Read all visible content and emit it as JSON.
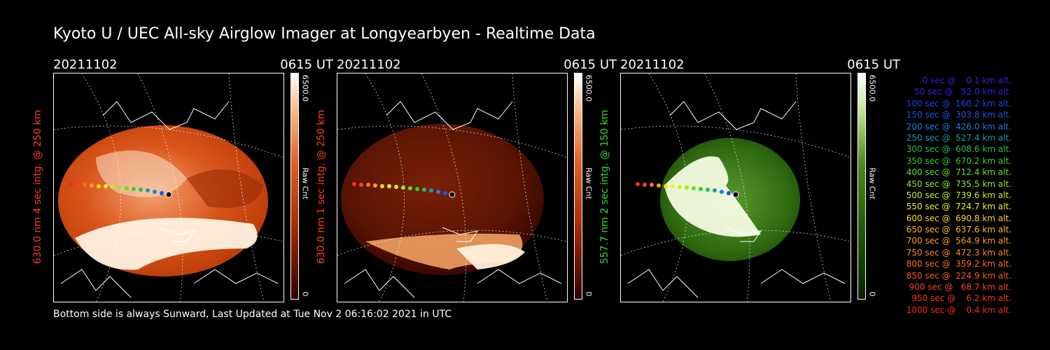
{
  "title": "Kyoto U / UEC All-sky Airglow Imager at Longyearbyen - Realtime Data",
  "colors": {
    "red_label": "#ff3b2b",
    "green_label": "#33dd33",
    "red_bar_top": "#ffffff",
    "red_bar_mid": "#d94a10",
    "green_bar_mid": "#3a8a10"
  },
  "panels": [
    {
      "date": "20211102",
      "time": "0615 UT",
      "side_label": "630.0 nm 4 sec intg. @ 250 km",
      "side_color": "#ff3b2b",
      "cbar_max": "6500.0",
      "cbar_unit": "Raw Cnt",
      "cbar_min": "0",
      "palette": "red-bright"
    },
    {
      "date": "20211102",
      "time": "0615 UT",
      "side_label": "630.0 nm 1 sec intg. @ 250 km",
      "side_color": "#ff3b2b",
      "cbar_max": "6500.0",
      "cbar_unit": "Raw Cnt",
      "cbar_min": "0",
      "palette": "red-dark"
    },
    {
      "date": "20211102",
      "time": "0615 UT",
      "side_label": "557.7 nm 2 sec intg. @ 150 km",
      "side_color": "#33dd33",
      "cbar_max": "6500.0",
      "cbar_unit": "Raw Cnt",
      "cbar_min": "0",
      "palette": "green"
    }
  ],
  "legend": [
    {
      "text": "   0 sec @    0.1 km alt.",
      "color": "#3a1fd8"
    },
    {
      "text": "  50 sec @   52.0 km alt.",
      "color": "#3320dd"
    },
    {
      "text": " 100 sec @  160.2 km alt.",
      "color": "#2440e0"
    },
    {
      "text": " 150 sec @  303.8 km alt.",
      "color": "#1c55e4"
    },
    {
      "text": " 200 sec @  426.0 km alt.",
      "color": "#1780e0"
    },
    {
      "text": " 250 sec @  527.4 km alt.",
      "color": "#1c9aa8"
    },
    {
      "text": " 300 sec @  608.6 km alt.",
      "color": "#22c060"
    },
    {
      "text": " 350 sec @  670.2 km alt.",
      "color": "#33d030"
    },
    {
      "text": " 400 sec @  712.4 km alt.",
      "color": "#66e020"
    },
    {
      "text": " 450 sec @  735.5 km alt.",
      "color": "#99e820"
    },
    {
      "text": " 500 sec @  739.6 km alt.",
      "color": "#ccf020"
    },
    {
      "text": " 550 sec @  724.7 km alt.",
      "color": "#eef020"
    },
    {
      "text": " 600 sec @  690.8 km alt.",
      "color": "#f8d820"
    },
    {
      "text": " 650 sec @  637.6 km alt.",
      "color": "#f8bd20"
    },
    {
      "text": " 700 sec @  564.9 km alt.",
      "color": "#f8a020"
    },
    {
      "text": " 750 sec @  472.3 km alt.",
      "color": "#f88820"
    },
    {
      "text": " 800 sec @  359.2 km alt.",
      "color": "#f87020"
    },
    {
      "text": " 850 sec @  224.9 km alt.",
      "color": "#f85a20"
    },
    {
      "text": " 900 sec @   68.7 km alt.",
      "color": "#f84520"
    },
    {
      "text": " 950 sec @    6.2 km alt.",
      "color": "#f83520"
    },
    {
      "text": "1000 sec @    0.4 km alt.",
      "color": "#f82a20"
    }
  ],
  "footer": "Bottom side is always Sunward, Last Updated at Tue Nov  2 06:16:02 2021 in UTC"
}
